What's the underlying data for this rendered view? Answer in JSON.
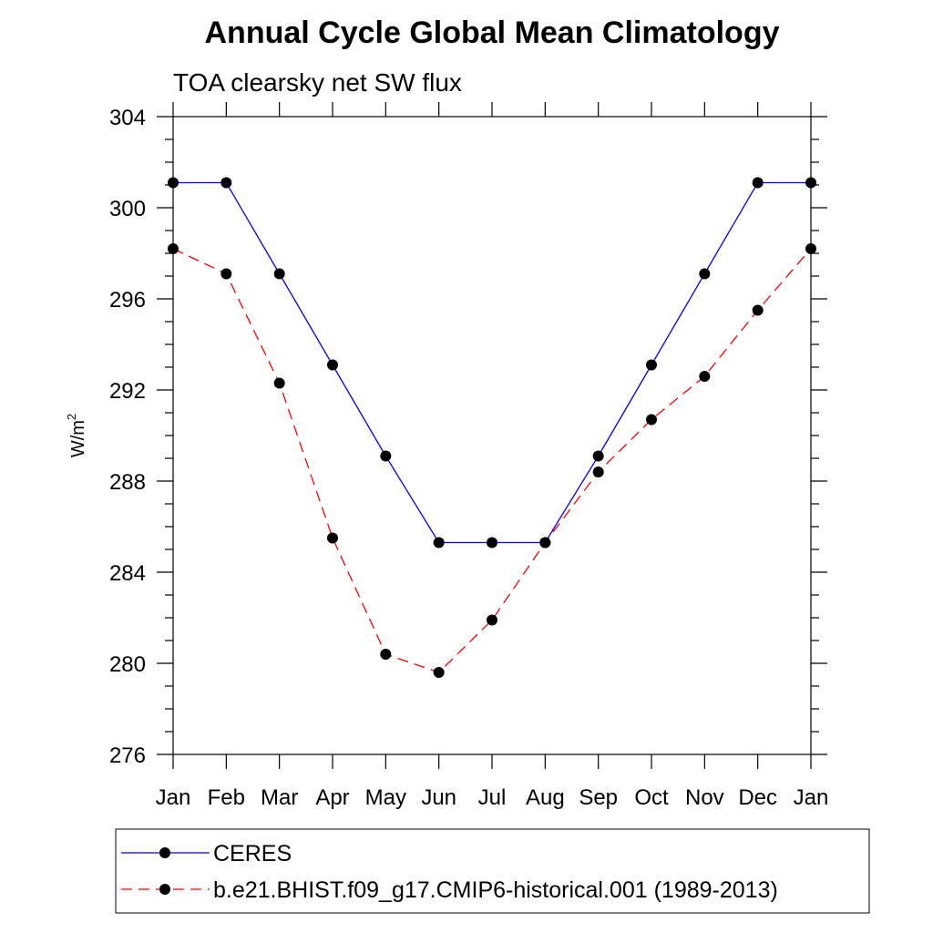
{
  "chart_data": {
    "type": "line",
    "title": "Annual Cycle Global Mean Climatology",
    "subtitle": "TOA clearsky net SW flux",
    "xlabel": "",
    "ylabel": "W/m",
    "ylabel_superscript": "2",
    "categories": [
      "Jan",
      "Feb",
      "Mar",
      "Apr",
      "May",
      "Jun",
      "Jul",
      "Aug",
      "Sep",
      "Oct",
      "Nov",
      "Dec",
      "Jan"
    ],
    "ylim": [
      276,
      304
    ],
    "yticks": [
      276,
      280,
      284,
      288,
      292,
      296,
      300,
      304
    ],
    "yminor_step": 1,
    "grid": false,
    "legend_position": "bottom",
    "series": [
      {
        "name": "CERES",
        "color": "#0000ff",
        "dash": "solid",
        "values": [
          301.1,
          301.1,
          297.1,
          293.1,
          289.1,
          285.3,
          285.3,
          285.3,
          289.1,
          293.1,
          297.1,
          301.1,
          301.1
        ]
      },
      {
        "name": "b.e21.BHIST.f09_g17.CMIP6-historical.001 (1989-2013)",
        "color": "#ff0000",
        "dash": "dashed",
        "values": [
          298.2,
          297.1,
          292.3,
          285.5,
          280.4,
          279.6,
          281.9,
          285.3,
          288.4,
          290.7,
          292.6,
          295.5,
          298.2
        ]
      }
    ]
  }
}
